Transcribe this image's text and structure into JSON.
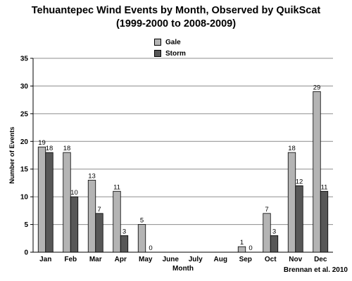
{
  "chart_data": {
    "type": "bar",
    "title_line1": "Tehuantepec Wind Events by Month, Observed by QuikScat",
    "title_line2": "(1999-2000 to 2008-2009)",
    "xlabel": "Month",
    "ylabel": "Number of Events",
    "ylim": [
      0,
      35
    ],
    "yticks": [
      0,
      5,
      10,
      15,
      20,
      25,
      30,
      35
    ],
    "grid": true,
    "legend_position": "top-center",
    "categories": [
      "Jan",
      "Feb",
      "Mar",
      "Apr",
      "May",
      "June",
      "July",
      "Aug",
      "Sep",
      "Oct",
      "Nov",
      "Dec"
    ],
    "series": [
      {
        "name": "Gale",
        "color": "#b4b4b4",
        "values": [
          19,
          18,
          13,
          11,
          5,
          null,
          null,
          null,
          1,
          7,
          18,
          29
        ]
      },
      {
        "name": "Storm",
        "color": "#575757",
        "values": [
          18,
          10,
          7,
          3,
          0,
          null,
          null,
          null,
          0,
          3,
          12,
          11
        ]
      }
    ],
    "credit": "Brennan et al. 2010"
  }
}
